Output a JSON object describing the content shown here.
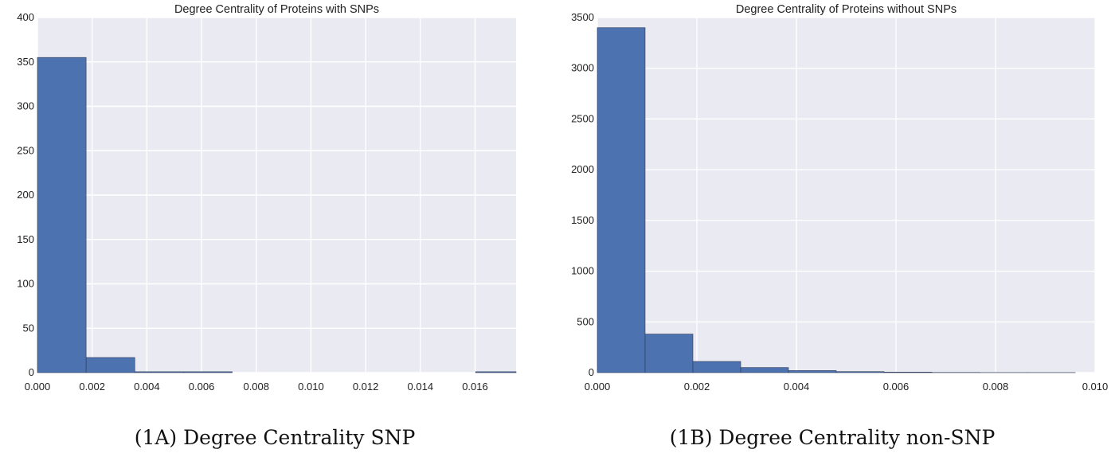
{
  "chart_data": [
    {
      "type": "bar",
      "title": "Degree Centrality of Proteins with SNPs",
      "caption": "(1A) Degree Centrality SNP",
      "xlabel": "",
      "ylabel": "",
      "xlim": [
        0.0,
        0.0175
      ],
      "ylim": [
        0,
        400
      ],
      "x_ticks": [
        "0.000",
        "0.002",
        "0.004",
        "0.006",
        "0.008",
        "0.010",
        "0.012",
        "0.014",
        "0.016"
      ],
      "y_ticks": [
        "0",
        "50",
        "100",
        "150",
        "200",
        "250",
        "300",
        "350",
        "400"
      ],
      "bin_edges": [
        0.0,
        0.00178,
        0.00356,
        0.00534,
        0.00712,
        0.0089,
        0.01068,
        0.01246,
        0.01424,
        0.01602,
        0.0178
      ],
      "values": [
        355,
        17,
        1,
        1,
        0,
        0,
        0,
        0,
        0,
        1
      ],
      "bar_color": "#4c72b0",
      "background": "#eaeaf2",
      "grid": true
    },
    {
      "type": "bar",
      "title": "Degree Centrality of Proteins without SNPs",
      "caption": "(1B) Degree Centrality non-SNP",
      "xlabel": "",
      "ylabel": "",
      "xlim": [
        0.0,
        0.01
      ],
      "ylim": [
        0,
        3500
      ],
      "x_ticks": [
        "0.000",
        "0.002",
        "0.004",
        "0.006",
        "0.008",
        "0.010"
      ],
      "y_ticks": [
        "0",
        "500",
        "1000",
        "1500",
        "2000",
        "2500",
        "3000",
        "3500"
      ],
      "bin_edges": [
        0.0,
        0.00096,
        0.00192,
        0.00288,
        0.00384,
        0.0048,
        0.00576,
        0.00672,
        0.00768,
        0.00864,
        0.0096
      ],
      "values": [
        3400,
        380,
        110,
        50,
        20,
        10,
        5,
        2,
        1,
        1
      ],
      "bar_color": "#4c72b0",
      "background": "#eaeaf2",
      "grid": true
    }
  ]
}
